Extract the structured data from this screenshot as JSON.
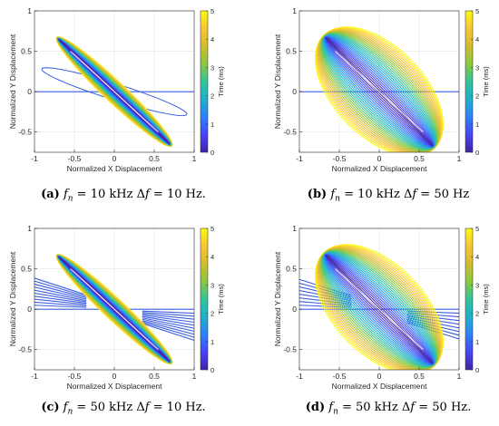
{
  "colors": {
    "accent_line": "#3b5fe0",
    "colormap": [
      "#3e26a8",
      "#4743f8",
      "#2c82f9",
      "#1fb0cd",
      "#33c39a",
      "#8bc83c",
      "#d1bb2f",
      "#fbc434",
      "#f9fb0e"
    ]
  },
  "chart_data": [
    {
      "id": "a",
      "type": "line",
      "xlabel": "Normalized X Displacement",
      "ylabel": "Normalized Y Displacement",
      "xlim": [
        -1,
        1
      ],
      "ylim": [
        -0.75,
        1
      ],
      "xticks": [
        "-1",
        "-0.5",
        "0",
        "0.5",
        "1"
      ],
      "yticks": [
        "-0.5",
        "0",
        "0.5",
        "1"
      ],
      "colorbar": {
        "label": "Time (ms)",
        "ticks": [
          "0",
          "1",
          "2",
          "3",
          "4",
          "5"
        ],
        "range": [
          0,
          5
        ]
      },
      "fn_khz": 10,
      "delta_f_hz": 10,
      "traces": {
        "ellipse_width": 0.12,
        "ellipse_rotation_deg": -43,
        "ellipse_radius": 1.0,
        "fan_lines": 1,
        "ramp_ellipse": true
      },
      "caption": {
        "label": "(a)",
        "fn": "= 10 kHz",
        "df": "= 10 Hz."
      }
    },
    {
      "id": "b",
      "type": "line",
      "xlabel": "Normalized X Displacement",
      "ylabel": "Normalized Y Displacement",
      "xlim": [
        -1,
        1
      ],
      "ylim": [
        -0.75,
        1
      ],
      "xticks": [
        "-1",
        "-0.5",
        "0",
        "0.5",
        "1"
      ],
      "yticks": [
        "-0.5",
        "0",
        "0.5",
        "1"
      ],
      "colorbar": {
        "label": "Time (ms)",
        "ticks": [
          "0",
          "1",
          "2",
          "3",
          "4",
          "5"
        ],
        "range": [
          0,
          5
        ]
      },
      "fn_khz": 10,
      "delta_f_hz": 50,
      "traces": {
        "ellipse_width": 0.55,
        "ellipse_rotation_deg": -45,
        "ellipse_radius": 1.0,
        "fan_lines": 1,
        "ramp_ellipse": false
      },
      "caption": {
        "label": "(b)",
        "fn": "= 10 kHz",
        "df": "= 50 Hz"
      }
    },
    {
      "id": "c",
      "type": "line",
      "xlabel": "Normalized X Displacement",
      "ylabel": "Normalized Y Displacement",
      "xlim": [
        -1,
        1
      ],
      "ylim": [
        -0.75,
        1
      ],
      "xticks": [
        "-1",
        "-0.5",
        "0",
        "0.5",
        "1"
      ],
      "yticks": [
        "-0.5",
        "0",
        "0.5",
        "1"
      ],
      "colorbar": {
        "label": "Time (ms)",
        "ticks": [
          "0",
          "1",
          "2",
          "3",
          "4",
          "5"
        ],
        "range": [
          0,
          5
        ]
      },
      "fn_khz": 50,
      "delta_f_hz": 10,
      "traces": {
        "ellipse_width": 0.12,
        "ellipse_rotation_deg": -43,
        "ellipse_radius": 1.0,
        "fan_lines": 10,
        "ramp_ellipse": false
      },
      "caption": {
        "label": "(c)",
        "fn": "= 50 kHz",
        "df": "= 10 Hz."
      }
    },
    {
      "id": "d",
      "type": "line",
      "xlabel": "Normalized X Displacement",
      "ylabel": "Normalized Y Displacement",
      "xlim": [
        -1,
        1
      ],
      "ylim": [
        -0.75,
        1
      ],
      "xticks": [
        "-1",
        "-0.5",
        "0",
        "0.5",
        "1"
      ],
      "yticks": [
        "-0.5",
        "0",
        "0.5",
        "1"
      ],
      "colorbar": {
        "label": "Time (ms)",
        "ticks": [
          "0",
          "1",
          "2",
          "3",
          "4",
          "5"
        ],
        "range": [
          0,
          5
        ]
      },
      "fn_khz": 50,
      "delta_f_hz": 50,
      "traces": {
        "ellipse_width": 0.55,
        "ellipse_rotation_deg": -45,
        "ellipse_radius": 1.0,
        "fan_lines": 8,
        "ramp_ellipse": false
      },
      "caption": {
        "label": "(d)",
        "fn": "= 50 kHz",
        "df": "= 50 Hz."
      }
    }
  ]
}
